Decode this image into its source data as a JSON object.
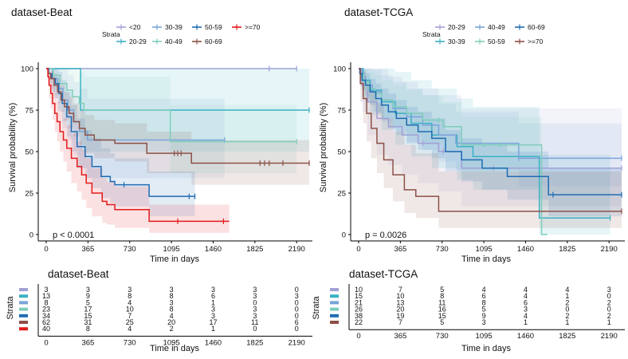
{
  "chart_data": [
    {
      "type": "line",
      "title": "dataset-Beat",
      "xlabel": "Time in days",
      "ylabel": "Survival probability (%)",
      "xlim": [
        0,
        2300
      ],
      "ylim": [
        0,
        100
      ],
      "xticks": [
        "0",
        "365",
        "730",
        "1095",
        "1460",
        "1825",
        "2190"
      ],
      "yticks": [
        "0",
        "25",
        "50",
        "75",
        "100"
      ],
      "legend_title": "Strata",
      "pvalue": "p < 0.0001",
      "series": [
        {
          "name": "<20",
          "color": "#a1a1d6",
          "x": [
            0,
            2190
          ],
          "y": [
            100,
            100
          ],
          "censor": [
            1950,
            2190
          ],
          "ci_lo": [
            100,
            100
          ],
          "ci_hi": [
            100,
            100
          ]
        },
        {
          "name": "20-29",
          "color": "#3bb1c4",
          "x": [
            0,
            300,
            2300
          ],
          "y": [
            100,
            75,
            75
          ],
          "censor": [
            2300
          ],
          "ci_lo": [
            100,
            50,
            50
          ],
          "ci_hi": [
            100,
            100,
            100
          ]
        },
        {
          "name": "30-39",
          "color": "#7aa3d9",
          "x": [
            0,
            55,
            100,
            145,
            190,
            240,
            290,
            360,
            1560
          ],
          "y": [
            100,
            94,
            88,
            81,
            75,
            68,
            62,
            57,
            57
          ],
          "censor": [
            1560
          ],
          "ci_lo": [
            100,
            82,
            74,
            64,
            57,
            48,
            40,
            34,
            34
          ],
          "ci_hi": [
            100,
            100,
            100,
            100,
            96,
            92,
            88,
            82,
            82
          ]
        },
        {
          "name": "40-49",
          "color": "#7fcdbb",
          "x": [
            0,
            60,
            120,
            180,
            230,
            290,
            330,
            1025,
            1085,
            2190
          ],
          "y": [
            100,
            96,
            91,
            87,
            83,
            79,
            75,
            75,
            56,
            56
          ],
          "censor": [
            2190
          ],
          "ci_lo": [
            100,
            88,
            80,
            73,
            67,
            62,
            57,
            57,
            37,
            37
          ],
          "ci_hi": [
            100,
            100,
            100,
            100,
            100,
            98,
            95,
            95,
            78,
            78
          ]
        },
        {
          "name": "50-59",
          "color": "#1f6bb3",
          "x": [
            0,
            20,
            50,
            80,
            110,
            140,
            180,
            220,
            270,
            340,
            400,
            480,
            560,
            600,
            900,
            1300
          ],
          "y": [
            100,
            97,
            94,
            91,
            85,
            79,
            71,
            62,
            53,
            47,
            41,
            35,
            32,
            30,
            23,
            23
          ],
          "censor": [
            680,
            1250,
            1300
          ],
          "ci_lo": [
            100,
            91,
            86,
            82,
            75,
            68,
            59,
            50,
            40,
            34,
            28,
            22,
            19,
            17,
            11,
            11
          ],
          "ci_hi": [
            100,
            100,
            100,
            100,
            98,
            93,
            86,
            78,
            70,
            63,
            58,
            52,
            49,
            46,
            38,
            38
          ]
        },
        {
          "name": "60-69",
          "color": "#8c5047",
          "x": [
            0,
            15,
            40,
            70,
            100,
            130,
            160,
            200,
            240,
            290,
            340,
            420,
            600,
            880,
            1270,
            2300
          ],
          "y": [
            100,
            97,
            94,
            90,
            86,
            81,
            77,
            73,
            68,
            64,
            60,
            57,
            55,
            49,
            43,
            43
          ],
          "censor": [
            1120,
            1150,
            1180,
            1870,
            1910,
            1950,
            2070,
            2300
          ],
          "ci_lo": [
            100,
            93,
            89,
            84,
            79,
            74,
            69,
            64,
            59,
            54,
            49,
            46,
            44,
            37,
            30,
            30
          ],
          "ci_hi": [
            100,
            100,
            99,
            97,
            94,
            90,
            86,
            83,
            79,
            75,
            72,
            69,
            67,
            62,
            57,
            57
          ]
        },
        {
          "name": ">=70",
          "color": "#e31a1c",
          "x": [
            0,
            15,
            25,
            40,
            55,
            75,
            95,
            120,
            150,
            180,
            220,
            270,
            310,
            350,
            400,
            490,
            530,
            600,
            900,
            1600
          ],
          "y": [
            100,
            95,
            90,
            85,
            79,
            73,
            68,
            62,
            57,
            52,
            46,
            41,
            36,
            31,
            25,
            20,
            18,
            15,
            8,
            8
          ],
          "censor": [
            1150,
            1550
          ],
          "ci_lo": [
            100,
            89,
            82,
            76,
            69,
            62,
            56,
            50,
            44,
            38,
            31,
            26,
            21,
            16,
            11,
            7,
            6,
            4,
            1,
            1
          ],
          "ci_hi": [
            100,
            100,
            98,
            94,
            90,
            85,
            80,
            75,
            70,
            66,
            61,
            56,
            51,
            46,
            40,
            34,
            32,
            29,
            18,
            18
          ]
        }
      ]
    },
    {
      "type": "line",
      "title": "dataset-TCGA",
      "xlabel": "Time in days",
      "ylabel": "Survival probability (%)",
      "xlim": [
        0,
        2300
      ],
      "ylim": [
        0,
        100
      ],
      "xticks": [
        "0",
        "365",
        "730",
        "1095",
        "1460",
        "1825",
        "2190"
      ],
      "yticks": [
        "0",
        "25",
        "50",
        "75",
        "100"
      ],
      "legend_title": "Strata",
      "pvalue": "p = 0.0026",
      "series": [
        {
          "name": "20-29",
          "color": "#a1a1d6",
          "x": [
            0,
            30,
            80,
            160,
            260,
            380,
            520,
            700,
            900,
            2300
          ],
          "y": [
            100,
            90,
            80,
            70,
            65,
            60,
            55,
            50,
            40,
            40
          ],
          "censor": [
            560,
            740,
            1180,
            2300
          ],
          "ci_lo": [
            100,
            74,
            60,
            48,
            42,
            36,
            31,
            26,
            17,
            17
          ],
          "ci_hi": [
            100,
            100,
            100,
            100,
            95,
            92,
            88,
            84,
            76,
            76
          ]
        },
        {
          "name": "30-39",
          "color": "#3bb1c4",
          "x": [
            0,
            40,
            100,
            200,
            320,
            460,
            640,
            860,
            1000,
            1560,
            1580,
            2200
          ],
          "y": [
            100,
            93,
            87,
            80,
            73,
            67,
            60,
            53,
            47,
            47,
            10,
            10
          ],
          "censor": [
            2200
          ],
          "ci_lo": [
            100,
            81,
            72,
            63,
            54,
            47,
            40,
            33,
            27,
            27,
            0,
            0
          ],
          "ci_hi": [
            100,
            100,
            100,
            100,
            98,
            93,
            88,
            82,
            77,
            77,
            48,
            48
          ]
        },
        {
          "name": "40-49",
          "color": "#7aa3d9",
          "x": [
            0,
            20,
            60,
            120,
            200,
            300,
            420,
            560,
            700,
            850,
            1400,
            2300
          ],
          "y": [
            100,
            95,
            90,
            86,
            81,
            76,
            71,
            66,
            60,
            55,
            46,
            46
          ],
          "censor": [
            1400,
            2300
          ],
          "ci_lo": [
            100,
            87,
            80,
            74,
            68,
            62,
            56,
            51,
            44,
            39,
            29,
            29
          ],
          "ci_hi": [
            100,
            100,
            100,
            99,
            96,
            92,
            88,
            84,
            79,
            74,
            67,
            67
          ]
        },
        {
          "name": "50-59",
          "color": "#7fcdbb",
          "x": [
            0,
            15,
            40,
            80,
            140,
            200,
            300,
            420,
            560,
            740,
            900,
            1300,
            1600,
            1650
          ],
          "y": [
            100,
            96,
            92,
            88,
            85,
            81,
            77,
            73,
            69,
            65,
            54,
            54,
            0,
            0
          ],
          "censor": [
            700,
            1100,
            1240
          ],
          "ci_lo": [
            100,
            89,
            84,
            79,
            74,
            70,
            65,
            60,
            55,
            50,
            38,
            38,
            0,
            0
          ],
          "ci_hi": [
            100,
            100,
            100,
            98,
            96,
            93,
            90,
            87,
            84,
            80,
            71,
            71,
            0,
            0
          ]
        },
        {
          "name": "60-69",
          "color": "#1f6bb3",
          "x": [
            0,
            10,
            30,
            60,
            100,
            150,
            200,
            260,
            330,
            420,
            520,
            640,
            760,
            900,
            1080,
            1300,
            1660,
            2300
          ],
          "y": [
            100,
            97,
            93,
            90,
            86,
            82,
            78,
            74,
            70,
            66,
            62,
            58,
            50,
            45,
            40,
            35,
            24,
            24
          ],
          "censor": [
            1700,
            2300
          ],
          "ci_lo": [
            100,
            92,
            87,
            83,
            78,
            73,
            69,
            64,
            60,
            55,
            51,
            46,
            38,
            32,
            27,
            21,
            11,
            11
          ],
          "ci_hi": [
            100,
            100,
            99,
            97,
            94,
            91,
            88,
            85,
            81,
            77,
            74,
            70,
            63,
            58,
            54,
            50,
            40,
            40
          ]
        },
        {
          "name": ">=70",
          "color": "#8c5047",
          "x": [
            0,
            15,
            40,
            70,
            110,
            160,
            220,
            300,
            400,
            500,
            700,
            2300
          ],
          "y": [
            100,
            91,
            82,
            73,
            64,
            55,
            45,
            36,
            27,
            23,
            14,
            14
          ],
          "censor": [
            2300
          ],
          "ci_lo": [
            100,
            80,
            67,
            56,
            46,
            37,
            28,
            20,
            13,
            10,
            4,
            4
          ],
          "ci_hi": [
            100,
            100,
            98,
            93,
            86,
            79,
            70,
            62,
            54,
            49,
            38,
            38
          ]
        }
      ]
    }
  ],
  "risk_tables": [
    {
      "title": "dataset-Beat",
      "ylabel": "Strata",
      "xlabel": "Time in days",
      "times": [
        "0",
        "365",
        "730",
        "1095",
        "1460",
        "1825",
        "2190"
      ],
      "rows": [
        [
          "3",
          "3",
          "3",
          "3",
          "3",
          "3",
          "0"
        ],
        [
          "13",
          "9",
          "8",
          "8",
          "6",
          "3",
          "3"
        ],
        [
          "8",
          "5",
          "4",
          "3",
          "1",
          "0",
          "0"
        ],
        [
          "23",
          "17",
          "10",
          "8",
          "3",
          "3",
          "0"
        ],
        [
          "34",
          "15",
          "7",
          "4",
          "3",
          "3",
          "0"
        ],
        [
          "62",
          "31",
          "25",
          "20",
          "17",
          "11",
          "6"
        ],
        [
          "40",
          "8",
          "4",
          "2",
          "1",
          "0",
          "0"
        ]
      ]
    },
    {
      "title": "dataset-TCGA",
      "ylabel": "Strata",
      "xlabel": "Time in days",
      "times": [
        "0",
        "365",
        "730",
        "1095",
        "1460",
        "1825",
        "2190"
      ],
      "rows": [
        [
          "10",
          "7",
          "5",
          "4",
          "4",
          "4",
          "3"
        ],
        [
          "15",
          "10",
          "8",
          "6",
          "4",
          "1",
          "0"
        ],
        [
          "21",
          "13",
          "11",
          "8",
          "6",
          "2",
          "2"
        ],
        [
          "26",
          "20",
          "16",
          "5",
          "3",
          "0",
          "0"
        ],
        [
          "38",
          "19",
          "15",
          "9",
          "4",
          "2",
          "2"
        ],
        [
          "22",
          "7",
          "5",
          "3",
          "1",
          "1",
          "1"
        ]
      ]
    }
  ]
}
